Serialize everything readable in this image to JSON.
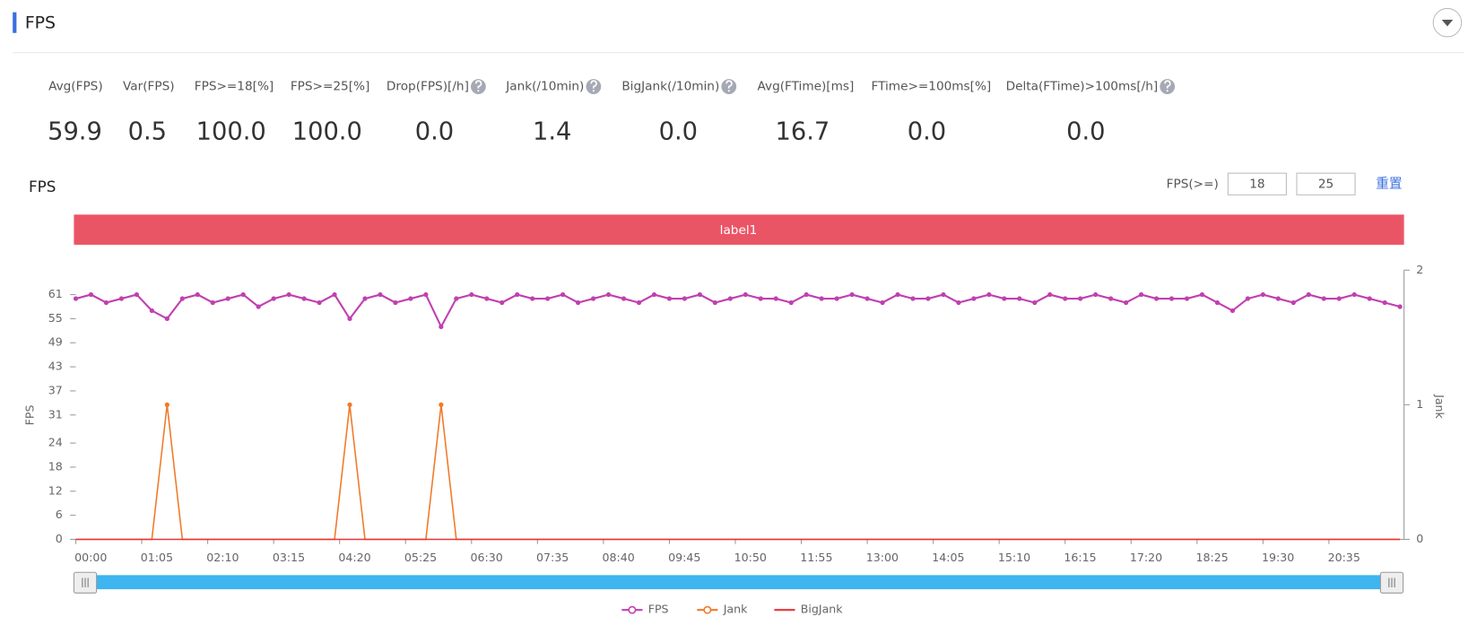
{
  "header": {
    "title": "FPS"
  },
  "metrics": [
    {
      "label": "Avg(FPS)",
      "value": "59.9"
    },
    {
      "label": "Var(FPS)",
      "value": "0.5"
    },
    {
      "label": "FPS>=18[%]",
      "value": "100.0"
    },
    {
      "label": "FPS>=25[%]",
      "value": "100.0"
    },
    {
      "label": "Drop(FPS)[/h]",
      "value": "0.0",
      "help": true
    },
    {
      "label": "Jank(/10min)",
      "value": "1.4",
      "help": true
    },
    {
      "label": "BigJank(/10min)",
      "value": "0.0",
      "help": true
    },
    {
      "label": "Avg(FTime)[ms]",
      "value": "16.7"
    },
    {
      "label": "FTime>=100ms[%]",
      "value": "0.0"
    },
    {
      "label": "Delta(FTime)>100ms[/h]",
      "value": "0.0",
      "help": true
    }
  ],
  "controls": {
    "label": "FPS(>=)",
    "inputs": [
      "18",
      "25"
    ],
    "reset": "重置"
  },
  "chart_data": {
    "type": "line",
    "title": "FPS",
    "band_label": "label1",
    "ylabel": "FPS",
    "y2label": "Jank",
    "x": [
      0,
      15,
      30,
      45,
      60,
      75,
      90,
      105,
      120,
      135,
      150,
      165,
      180,
      195,
      210,
      225,
      240,
      255,
      270,
      285,
      300,
      315,
      330,
      345,
      360,
      375,
      390,
      405,
      420,
      435,
      450,
      465,
      480,
      495,
      510,
      525,
      540,
      555,
      570,
      585,
      600,
      615,
      630,
      645,
      660,
      675,
      690,
      705,
      720,
      735,
      750,
      765,
      780,
      795,
      810,
      825,
      840,
      855,
      870,
      885,
      900,
      915,
      930,
      945,
      960,
      975,
      990,
      1005,
      1020,
      1035,
      1050,
      1065,
      1080,
      1095,
      1110,
      1125,
      1140,
      1155,
      1170,
      1185,
      1200,
      1215,
      1230,
      1245,
      1260,
      1275,
      1290,
      1305
    ],
    "xlim": [
      0,
      1309
    ],
    "xticks": [
      {
        "value": 0,
        "label": "00:00"
      },
      {
        "value": 65,
        "label": "01:05"
      },
      {
        "value": 130,
        "label": "02:10"
      },
      {
        "value": 195,
        "label": "03:15"
      },
      {
        "value": 260,
        "label": "04:20"
      },
      {
        "value": 325,
        "label": "05:25"
      },
      {
        "value": 390,
        "label": "06:30"
      },
      {
        "value": 455,
        "label": "07:35"
      },
      {
        "value": 520,
        "label": "08:40"
      },
      {
        "value": 585,
        "label": "09:45"
      },
      {
        "value": 650,
        "label": "10:50"
      },
      {
        "value": 715,
        "label": "11:55"
      },
      {
        "value": 780,
        "label": "13:00"
      },
      {
        "value": 845,
        "label": "14:05"
      },
      {
        "value": 910,
        "label": "15:10"
      },
      {
        "value": 975,
        "label": "16:15"
      },
      {
        "value": 1040,
        "label": "17:20"
      },
      {
        "value": 1105,
        "label": "18:25"
      },
      {
        "value": 1170,
        "label": "19:30"
      },
      {
        "value": 1235,
        "label": "20:35"
      }
    ],
    "ylim": [
      0,
      67.1
    ],
    "yticks": [
      0,
      6,
      12,
      18,
      24,
      31,
      37,
      43,
      49,
      55,
      61
    ],
    "y2lim": [
      0,
      2
    ],
    "y2ticks": [
      0,
      1,
      2
    ],
    "series": [
      {
        "name": "FPS",
        "color": "#c040b0",
        "values": [
          60,
          61,
          59,
          60,
          61,
          57,
          55,
          60,
          61,
          59,
          60,
          61,
          58,
          60,
          61,
          60,
          59,
          61,
          55,
          60,
          61,
          59,
          60,
          61,
          53,
          60,
          61,
          60,
          59,
          61,
          60,
          60,
          61,
          59,
          60,
          61,
          60,
          59,
          61,
          60,
          60,
          61,
          59,
          60,
          61,
          60,
          60,
          59,
          61,
          60,
          60,
          61,
          60,
          59,
          61,
          60,
          60,
          61,
          59,
          60,
          61,
          60,
          60,
          59,
          61,
          60,
          60,
          61,
          60,
          59,
          61,
          60,
          60,
          60,
          61,
          59,
          57,
          60,
          61,
          60,
          59,
          61,
          60,
          60,
          61,
          60,
          59,
          58
        ]
      },
      {
        "name": "Jank",
        "color": "#f07a2a",
        "axis": "y2",
        "values": [
          0,
          0,
          0,
          0,
          0,
          0,
          1,
          0,
          0,
          0,
          0,
          0,
          0,
          0,
          0,
          0,
          0,
          0,
          1,
          0,
          0,
          0,
          0,
          0,
          1,
          0,
          0,
          0,
          0,
          0,
          0,
          0,
          0,
          0,
          0,
          0,
          0,
          0,
          0,
          0,
          0,
          0,
          0,
          0,
          0,
          0,
          0,
          0,
          0,
          0,
          0,
          0,
          0,
          0,
          0,
          0,
          0,
          0,
          0,
          0,
          0,
          0,
          0,
          0,
          0,
          0,
          0,
          0,
          0,
          0,
          0,
          0,
          0,
          0,
          0,
          0,
          0,
          0,
          0,
          0,
          0,
          0,
          0,
          0,
          0,
          0,
          0,
          0
        ]
      },
      {
        "name": "BigJank",
        "color": "#e8333a",
        "axis": "y2",
        "values": [
          0,
          0,
          0,
          0,
          0,
          0,
          0,
          0,
          0,
          0,
          0,
          0,
          0,
          0,
          0,
          0,
          0,
          0,
          0,
          0,
          0,
          0,
          0,
          0,
          0,
          0,
          0,
          0,
          0,
          0,
          0,
          0,
          0,
          0,
          0,
          0,
          0,
          0,
          0,
          0,
          0,
          0,
          0,
          0,
          0,
          0,
          0,
          0,
          0,
          0,
          0,
          0,
          0,
          0,
          0,
          0,
          0,
          0,
          0,
          0,
          0,
          0,
          0,
          0,
          0,
          0,
          0,
          0,
          0,
          0,
          0,
          0,
          0,
          0,
          0,
          0,
          0,
          0,
          0,
          0,
          0,
          0,
          0,
          0,
          0,
          0,
          0,
          0
        ]
      }
    ]
  }
}
